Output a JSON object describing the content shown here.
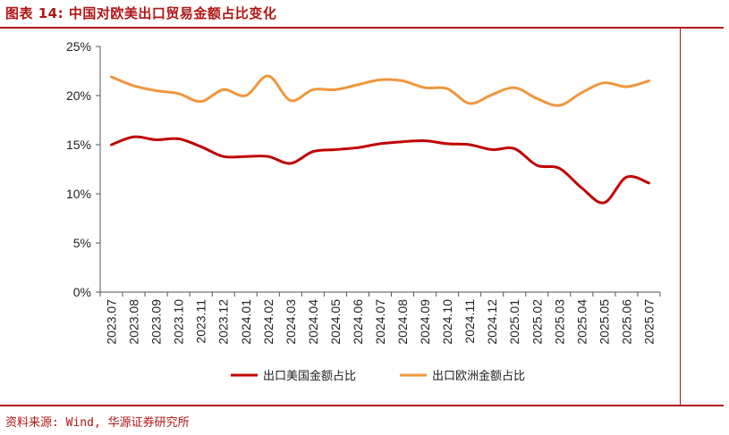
{
  "title": "图表 14: 中国对欧美出口贸易金额占比变化",
  "source": "资料来源: Wind, 华源证券研究所",
  "colors": {
    "accent": "#b01515",
    "us_series": "#c00000",
    "eu_series": "#f0963c",
    "axis": "#555555"
  },
  "chart_data": {
    "type": "line",
    "title": "",
    "xlabel": "",
    "ylabel": "",
    "ylim": [
      0,
      25
    ],
    "yticks": [
      "0%",
      "5%",
      "10%",
      "15%",
      "20%",
      "25%"
    ],
    "grid": false,
    "legend_position": "bottom",
    "x": [
      "2023.07",
      "2023.08",
      "2023.09",
      "2023.10",
      "2023.11",
      "2023.12",
      "2024.01",
      "2024.02",
      "2024.03",
      "2024.04",
      "2024.05",
      "2024.06",
      "2024.07",
      "2024.08",
      "2024.09",
      "2024.10",
      "2024.11",
      "2024.12",
      "2025.01",
      "2025.02",
      "2025.03",
      "2025.04",
      "2025.05",
      "2025.06",
      "2025.07"
    ],
    "series": [
      {
        "name": "出口美国金额占比",
        "color": "#c00000",
        "values": [
          15.0,
          15.8,
          15.5,
          15.6,
          14.8,
          13.8,
          13.8,
          13.8,
          13.1,
          14.3,
          14.5,
          14.7,
          15.1,
          15.3,
          15.4,
          15.1,
          15.0,
          14.5,
          14.6,
          12.9,
          12.6,
          10.6,
          9.1,
          11.7,
          11.1
        ]
      },
      {
        "name": "出口欧洲金额占比",
        "color": "#f0963c",
        "values": [
          21.9,
          21.0,
          20.5,
          20.2,
          19.4,
          20.6,
          20.0,
          22.0,
          19.5,
          20.6,
          20.6,
          21.1,
          21.6,
          21.5,
          20.8,
          20.7,
          19.2,
          20.1,
          20.8,
          19.7,
          19.0,
          20.3,
          21.3,
          20.9,
          21.5
        ]
      }
    ]
  }
}
